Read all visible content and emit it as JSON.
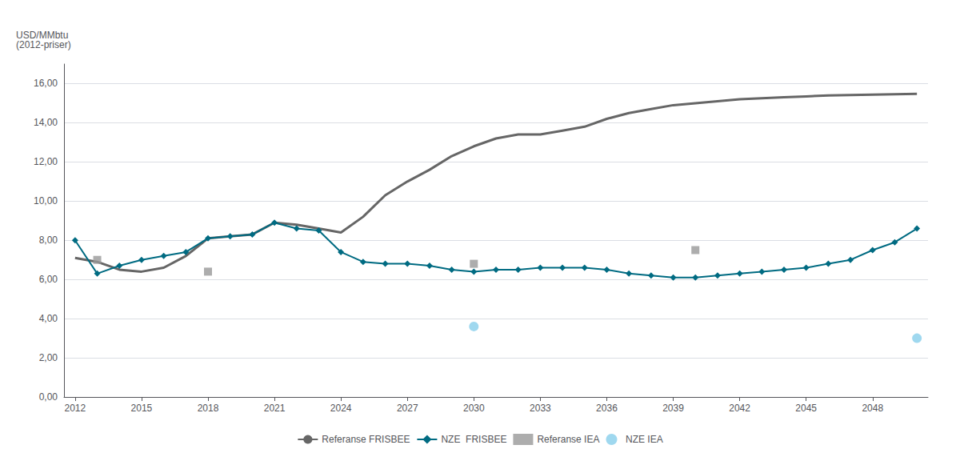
{
  "chart_data": {
    "type": "line",
    "ylabel": "USD/MMbtu\n(2012-priser)",
    "xlim": [
      2011.5,
      2050.5
    ],
    "ylim": [
      0,
      17
    ],
    "xticks": [
      2012,
      2015,
      2018,
      2021,
      2024,
      2027,
      2030,
      2033,
      2036,
      2039,
      2042,
      2045,
      2048
    ],
    "yticks": [
      {
        "value": 0,
        "label": "0,00"
      },
      {
        "value": 2.0,
        "label": "2,00"
      },
      {
        "value": 4.0,
        "label": "4,00"
      },
      {
        "value": 6.0,
        "label": "6,00"
      },
      {
        "value": 8.0,
        "label": "8,00"
      },
      {
        "value": 10.0,
        "label": "10,00"
      },
      {
        "value": 12.0,
        "label": "12,00"
      },
      {
        "value": 14.0,
        "label": "14,00"
      },
      {
        "value": 16.0,
        "label": "16,00"
      }
    ],
    "grid": true,
    "legend": "bottom",
    "series": [
      {
        "name": "Referanse FRISBEE",
        "type": "line",
        "color": "#666666",
        "marker": "none",
        "x": [
          2012,
          2013,
          2014,
          2015,
          2016,
          2017,
          2018,
          2019,
          2020,
          2021,
          2022,
          2023,
          2024,
          2025,
          2026,
          2027,
          2028,
          2029,
          2030,
          2031,
          2032,
          2033,
          2034,
          2035,
          2036,
          2037,
          2038,
          2039,
          2040,
          2041,
          2042,
          2043,
          2044,
          2045,
          2046,
          2047,
          2048,
          2049,
          2050
        ],
        "values": [
          7.1,
          6.9,
          6.5,
          6.4,
          6.6,
          7.2,
          8.1,
          8.2,
          8.3,
          8.9,
          8.8,
          8.6,
          8.4,
          9.2,
          10.3,
          11.0,
          11.6,
          12.3,
          12.8,
          13.2,
          13.4,
          13.4,
          13.6,
          13.8,
          14.2,
          14.5,
          14.7,
          14.9,
          15.0,
          15.1,
          15.2,
          15.25,
          15.3,
          15.35,
          15.4,
          15.42,
          15.44,
          15.46,
          15.48
        ]
      },
      {
        "name": "NZE  FRISBEE",
        "type": "line",
        "color": "#006b82",
        "marker": "diamond",
        "x": [
          2012,
          2013,
          2014,
          2015,
          2016,
          2017,
          2018,
          2019,
          2020,
          2021,
          2022,
          2023,
          2024,
          2025,
          2026,
          2027,
          2028,
          2029,
          2030,
          2031,
          2032,
          2033,
          2034,
          2035,
          2036,
          2037,
          2038,
          2039,
          2040,
          2041,
          2042,
          2043,
          2044,
          2045,
          2046,
          2047,
          2048,
          2049,
          2050
        ],
        "values": [
          8.0,
          6.3,
          6.7,
          7.0,
          7.2,
          7.4,
          8.1,
          8.2,
          8.3,
          8.9,
          8.6,
          8.5,
          7.4,
          6.9,
          6.8,
          6.8,
          6.7,
          6.5,
          6.4,
          6.5,
          6.5,
          6.6,
          6.6,
          6.6,
          6.5,
          6.3,
          6.2,
          6.1,
          6.1,
          6.2,
          6.3,
          6.4,
          6.5,
          6.6,
          6.8,
          7.0,
          7.5,
          7.9,
          8.6
        ]
      },
      {
        "name": "Referanse IEA",
        "type": "scatter",
        "color": "#999999",
        "marker": "square",
        "x": [
          2013,
          2018,
          2030,
          2040
        ],
        "values": [
          7.0,
          6.4,
          6.8,
          7.5
        ]
      },
      {
        "name": "NZE IEA",
        "type": "scatter",
        "color": "#87ceeb",
        "marker": "circle",
        "x": [
          2030,
          2050
        ],
        "values": [
          3.6,
          3.0
        ]
      }
    ]
  }
}
